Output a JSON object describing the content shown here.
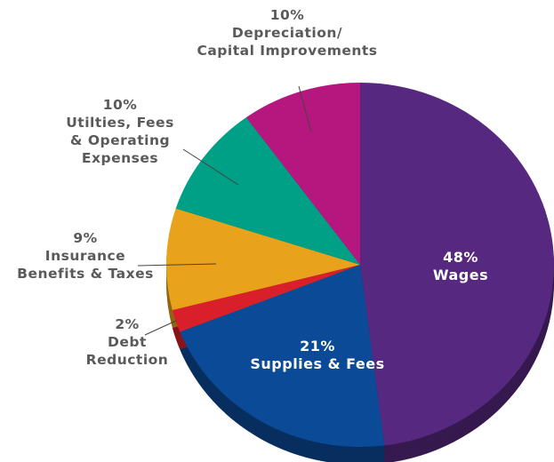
{
  "chart_data": {
    "type": "pie",
    "categories": [
      "Wages",
      "Supplies & Fees",
      "Debt\nReduction",
      "Insurance\nBenefits & Taxes",
      "Utilties, Fees\n& Operating\nExpenses",
      "Depreciation/\nCapital Improvements"
    ],
    "values": [
      48,
      21,
      2,
      9,
      10,
      10
    ],
    "value_labels": [
      "48%",
      "21%",
      "2%",
      "9%",
      "10%",
      "10%"
    ],
    "colors": [
      "#56287f",
      "#0b4a97",
      "#d9202a",
      "#e8a21b",
      "#00a086",
      "#b5177f"
    ]
  }
}
